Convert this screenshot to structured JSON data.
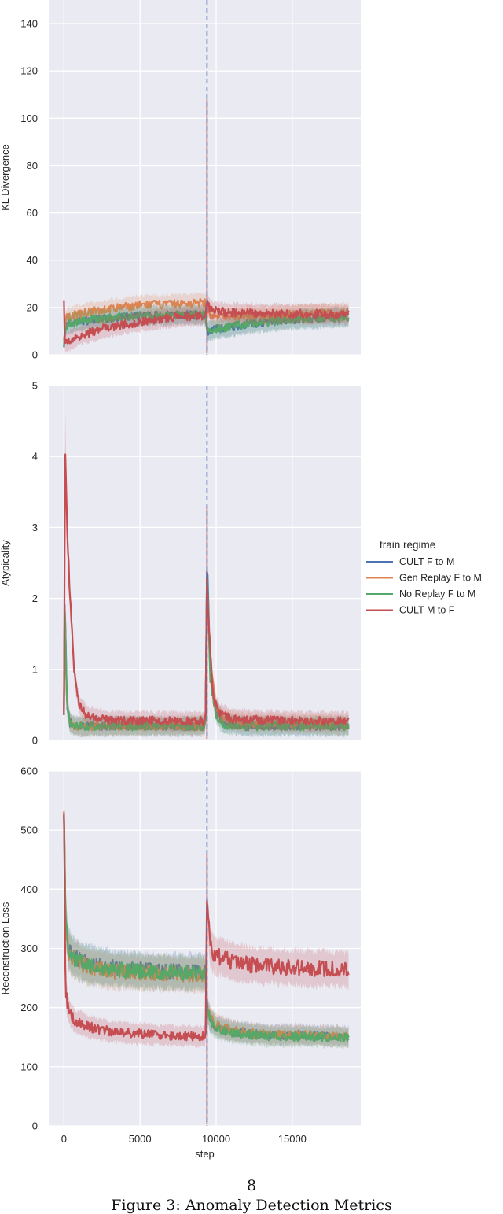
{
  "chart_data": {
    "type": "line",
    "shared_x": {
      "label": "step",
      "ticks": [
        0,
        5000,
        10000,
        15000
      ],
      "lim": [
        -1000,
        19500
      ]
    },
    "boundary_step": 9400,
    "boundary_line_color": "#4c72b0",
    "legend": {
      "title": "train regime",
      "placement": "right",
      "entries": [
        {
          "name": "CULT F to M",
          "color": "#4c72b0"
        },
        {
          "name": "Gen Replay F to M",
          "color": "#dd8452"
        },
        {
          "name": "No Replay F to M",
          "color": "#55a868"
        },
        {
          "name": "CULT M to F",
          "color": "#c44e52"
        }
      ]
    },
    "background": "#eaeaf2",
    "grid": true,
    "panels": [
      {
        "ylabel": "KL Divergence",
        "ylim": [
          0,
          150
        ],
        "yticks": [
          0,
          20,
          40,
          60,
          80,
          100,
          120,
          140
        ],
        "spike_at_boundary": 108,
        "series": [
          {
            "name": "CULT F to M",
            "x": [
              0,
              100,
              300,
              800,
              2000,
              5000,
              9300,
              9400,
              9700,
              12000,
              15000,
              18700
            ],
            "y": [
              5,
              12,
              13,
              14,
              15,
              16.5,
              17,
              10,
              10.5,
              13,
              15,
              16
            ]
          },
          {
            "name": "Gen Replay F to M",
            "x": [
              0,
              100,
              300,
              800,
              2000,
              5000,
              9300,
              9400,
              9700,
              12000,
              15000,
              18700
            ],
            "y": [
              5,
              15,
              16,
              17,
              18.5,
              21,
              22,
              20,
              16,
              16.5,
              17,
              18
            ]
          },
          {
            "name": "No Replay F to M",
            "x": [
              0,
              100,
              300,
              800,
              2000,
              5000,
              9300,
              9400,
              9700,
              12000,
              15000,
              18700
            ],
            "y": [
              5,
              12,
              13,
              14,
              15,
              16.5,
              17,
              10,
              10.5,
              13,
              15,
              16
            ]
          },
          {
            "name": "CULT M to F",
            "x": [
              0,
              50,
              150,
              400,
              1000,
              2500,
              5000,
              7500,
              9300,
              9400,
              9600,
              10500,
              13000,
              18700
            ],
            "y": [
              22,
              6,
              5,
              6,
              8,
              11,
              14,
              16,
              16.5,
              22,
              19,
              18,
              17.5,
              17
            ]
          }
        ]
      },
      {
        "ylabel": "Atypicality",
        "ylim": [
          0,
          5
        ],
        "yticks": [
          0,
          1,
          2,
          3,
          4,
          5
        ],
        "spike_at_boundary": 3.3,
        "series": [
          {
            "name": "CULT F to M",
            "x": [
              0,
              50,
              200,
              400,
              700,
              1500,
              5000,
              9300,
              9400,
              9600,
              10000,
              10500,
              12000,
              18700
            ],
            "y": [
              0.4,
              2.1,
              0.5,
              0.25,
              0.2,
              0.2,
              0.2,
              0.2,
              2.6,
              1.0,
              0.4,
              0.25,
              0.2,
              0.2
            ]
          },
          {
            "name": "Gen Replay F to M",
            "x": [
              0,
              50,
              200,
              400,
              700,
              1500,
              5000,
              9300,
              9400,
              9600,
              10000,
              10500,
              12000,
              18700
            ],
            "y": [
              0.4,
              2.0,
              0.5,
              0.25,
              0.2,
              0.2,
              0.2,
              0.2,
              2.4,
              1.1,
              0.45,
              0.3,
              0.25,
              0.22
            ]
          },
          {
            "name": "No Replay F to M",
            "x": [
              0,
              50,
              200,
              400,
              700,
              1500,
              5000,
              9300,
              9400,
              9600,
              10000,
              10500,
              12000,
              18700
            ],
            "y": [
              0.4,
              1.9,
              0.5,
              0.25,
              0.2,
              0.2,
              0.2,
              0.2,
              2.5,
              0.9,
              0.35,
              0.22,
              0.2,
              0.2
            ]
          },
          {
            "name": "CULT M to F",
            "x": [
              0,
              80,
              200,
              400,
              700,
              1000,
              1500,
              3000,
              9300,
              9400,
              9550,
              9800,
              10200,
              11000,
              14000,
              18700
            ],
            "y": [
              0.4,
              4.3,
              3.0,
              2.0,
              0.9,
              0.5,
              0.35,
              0.28,
              0.27,
              2.3,
              1.5,
              0.6,
              0.4,
              0.3,
              0.28,
              0.27
            ]
          }
        ]
      },
      {
        "ylabel": "Reconstruction Loss",
        "ylim": [
          0,
          600
        ],
        "yticks": [
          0,
          100,
          200,
          300,
          400,
          500,
          600
        ],
        "spike_at_boundary": 460,
        "series": [
          {
            "name": "CULT F to M",
            "x": [
              0,
              100,
              300,
              700,
              1500,
              3000,
              6000,
              9300,
              9400,
              9600,
              10000,
              11000,
              13000,
              18700
            ],
            "y": [
              540,
              350,
              300,
              285,
              275,
              268,
              262,
              260,
              200,
              180,
              168,
              160,
              155,
              152
            ]
          },
          {
            "name": "Gen Replay F to M",
            "x": [
              0,
              100,
              300,
              700,
              1500,
              3000,
              6000,
              9300,
              9400,
              9600,
              10000,
              11000,
              13000,
              18700
            ],
            "y": [
              540,
              345,
              295,
              280,
              270,
              262,
              258,
              256,
              205,
              182,
              170,
              161,
              155,
              151
            ]
          },
          {
            "name": "No Replay F to M",
            "x": [
              0,
              100,
              300,
              700,
              1500,
              3000,
              6000,
              9300,
              9400,
              9600,
              10000,
              11000,
              13000,
              18700
            ],
            "y": [
              540,
              348,
              298,
              282,
              272,
              265,
              260,
              258,
              198,
              178,
              165,
              157,
              152,
              149
            ]
          },
          {
            "name": "CULT M to F",
            "x": [
              0,
              100,
              300,
              700,
              1500,
              3000,
              6000,
              9300,
              9400,
              9600,
              10000,
              11000,
              13000,
              18700
            ],
            "y": [
              540,
              230,
              195,
              178,
              168,
              160,
              154,
              151,
              380,
              300,
              288,
              278,
              270,
              264
            ]
          }
        ]
      }
    ]
  },
  "page": {
    "number": "8",
    "caption": "Figure 3: Anomaly Detection Metrics"
  }
}
